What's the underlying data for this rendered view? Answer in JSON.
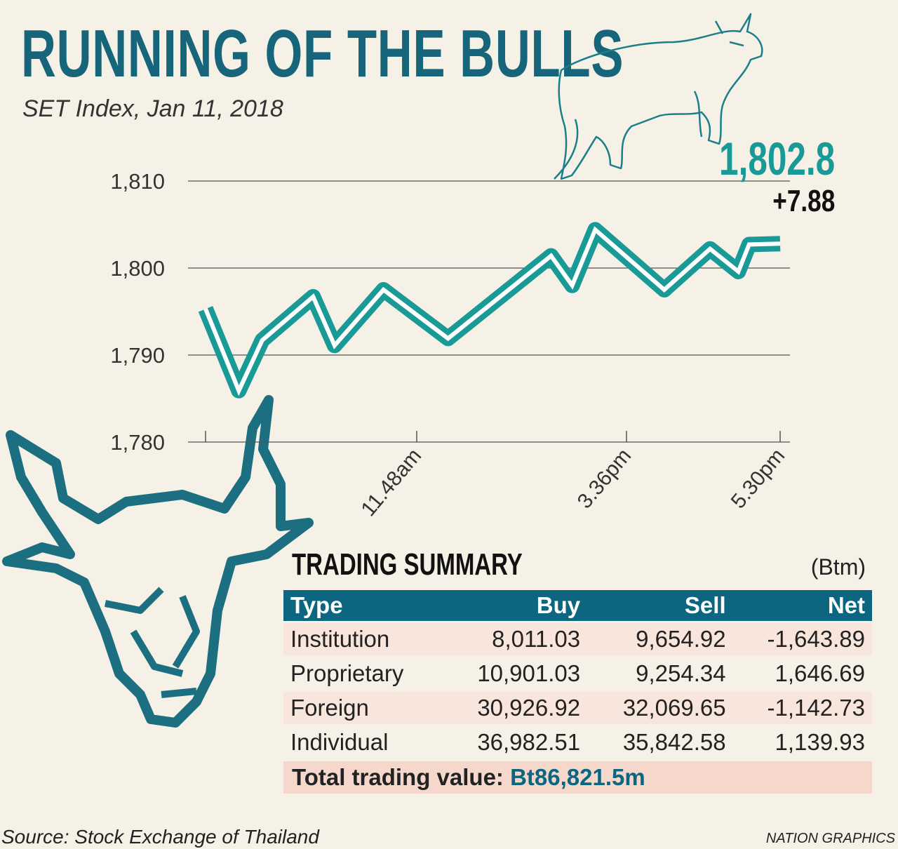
{
  "header": {
    "title": "RUNNING OF THE BULLS",
    "subtitle": "SET Index, Jan 11, 2018"
  },
  "colors": {
    "line": "#1a9a96",
    "line_core": "#ffffff",
    "title": "#17657a",
    "table_header": "#0d6680",
    "background": "#f6f1e6"
  },
  "chart_data": {
    "type": "line",
    "title": "SET Index, Jan 11, 2018",
    "xlabel": "",
    "ylabel": "",
    "ylim": [
      1780,
      1810
    ],
    "yticks": [
      "1,780",
      "1,790",
      "1,800",
      "1,810"
    ],
    "ytick_values": [
      1780,
      1790,
      1800,
      1810
    ],
    "xticks": [
      {
        "t": "10:00",
        "label": ""
      },
      {
        "t": "11:48",
        "label": "11.48am"
      },
      {
        "t": "15:36",
        "label": "3.36pm"
      },
      {
        "t": "17:30",
        "label": "5.30pm"
      }
    ],
    "grid": true,
    "series": [
      {
        "name": "SET Index",
        "x": [
          "10:00",
          "10:17",
          "10:29",
          "10:55",
          "11:06",
          "11:31",
          "12:22",
          "14:14",
          "14:37",
          "15:02",
          "16:04",
          "16:38",
          "16:59",
          "17:07",
          "17:30"
        ],
        "values": [
          1795.3,
          1785.9,
          1791.7,
          1796.7,
          1791.1,
          1797.5,
          1791.9,
          1801.4,
          1798.0,
          1804.4,
          1797.5,
          1802.2,
          1799.6,
          1802.7,
          1802.8
        ]
      }
    ],
    "annotations": {
      "last_value": "1,802.8",
      "change": "+7.88"
    }
  },
  "summary": {
    "title": "TRADING SUMMARY",
    "unit": "(Btm)",
    "columns": [
      "Type",
      "Buy",
      "Sell",
      "Net"
    ],
    "rows": [
      [
        "Institution",
        "8,011.03",
        "9,654.92",
        "-1,643.89"
      ],
      [
        "Proprietary",
        "10,901.03",
        "9,254.34",
        "1,646.69"
      ],
      [
        "Foreign",
        "30,926.92",
        "32,069.65",
        "-1,142.73"
      ],
      [
        "Individual",
        "36,982.51",
        "35,842.58",
        "1,139.93"
      ]
    ],
    "total_label": "Total trading value:",
    "total_value": "Bt86,821.5m"
  },
  "footer": {
    "source": "Source: Stock Exchange of Thailand",
    "credit": "NATION GRAPHICS"
  }
}
